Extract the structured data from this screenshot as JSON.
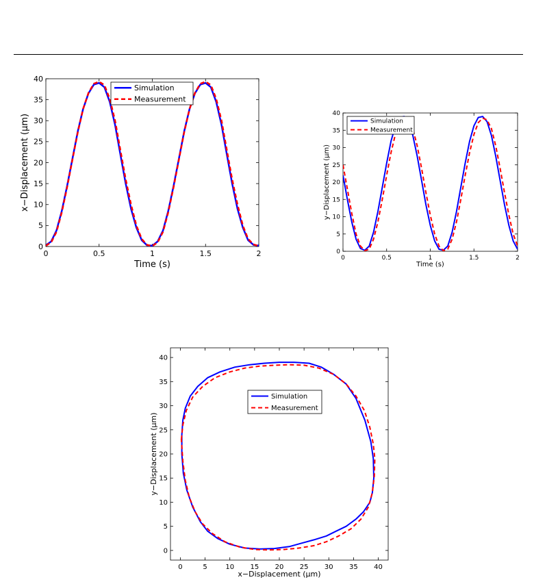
{
  "chart_data": [
    {
      "type": "line",
      "title": "",
      "xlabel": "Time (s)",
      "ylabel": "x−Displacement (μm)",
      "xlim": [
        0,
        2
      ],
      "ylim": [
        0,
        40
      ],
      "xticks": [
        0,
        0.5,
        1,
        1.5,
        2
      ],
      "xtick_labels": [
        "0",
        "0.5",
        "1",
        "1.5",
        "2"
      ],
      "yticks": [
        0,
        5,
        10,
        15,
        20,
        25,
        30,
        35,
        40
      ],
      "ytick_labels": [
        "0",
        "5",
        "10",
        "15",
        "20",
        "25",
        "30",
        "35",
        "40"
      ],
      "legend_position": "top-center",
      "series": [
        {
          "name": "Simulation",
          "color": "#0000ff",
          "style": "solid",
          "x": [
            0,
            0.05,
            0.1,
            0.15,
            0.2,
            0.25,
            0.3,
            0.35,
            0.4,
            0.45,
            0.5,
            0.55,
            0.6,
            0.65,
            0.7,
            0.75,
            0.8,
            0.85,
            0.9,
            0.95,
            1,
            1.05,
            1.1,
            1.15,
            1.2,
            1.25,
            1.3,
            1.35,
            1.4,
            1.45,
            1.5,
            1.55,
            1.6,
            1.65,
            1.7,
            1.75,
            1.8,
            1.85,
            1.9,
            1.95,
            2
          ],
          "y": [
            0.3,
            1.2,
            3.8,
            8.5,
            14.5,
            21,
            27.5,
            32.8,
            36.5,
            38.6,
            39,
            38,
            34.5,
            29,
            22,
            15,
            9,
            4.5,
            1.5,
            0.3,
            0.2,
            1.2,
            3.8,
            8.5,
            14.5,
            21,
            27.5,
            32.8,
            36.5,
            38.6,
            39,
            38,
            34.5,
            29,
            22,
            15,
            9,
            4.5,
            1.5,
            0.4,
            0.2
          ]
        },
        {
          "name": "Measurement",
          "color": "#ff0000",
          "style": "dashed",
          "x": [
            0,
            0.05,
            0.1,
            0.15,
            0.2,
            0.25,
            0.3,
            0.35,
            0.4,
            0.45,
            0.5,
            0.55,
            0.6,
            0.65,
            0.7,
            0.75,
            0.8,
            0.85,
            0.9,
            0.95,
            1,
            1.05,
            1.1,
            1.15,
            1.2,
            1.25,
            1.3,
            1.35,
            1.4,
            1.45,
            1.5,
            1.55,
            1.6,
            1.65,
            1.7,
            1.75,
            1.8,
            1.85,
            1.9,
            1.95,
            2
          ],
          "y": [
            0.2,
            1.0,
            3.5,
            8.2,
            14.2,
            20.8,
            27.3,
            32.8,
            36.6,
            38.8,
            39.3,
            38.5,
            35.2,
            30,
            23,
            16,
            10,
            5,
            1.8,
            0.4,
            0.1,
            1.0,
            3.5,
            8.2,
            14.2,
            20.8,
            27.3,
            32.8,
            36.6,
            38.8,
            39.3,
            38.5,
            35.2,
            30,
            23,
            16,
            10,
            5,
            1.8,
            0.5,
            0.1
          ]
        }
      ]
    },
    {
      "type": "line",
      "title": "",
      "xlabel": "Time (s)",
      "ylabel": "y−Displacement (μm)",
      "xlim": [
        0,
        2
      ],
      "ylim": [
        0,
        40
      ],
      "xticks": [
        0,
        0.5,
        1,
        1.5,
        2
      ],
      "xtick_labels": [
        "0",
        "0.5",
        "1",
        "1.5",
        "2"
      ],
      "yticks": [
        0,
        5,
        10,
        15,
        20,
        25,
        30,
        35,
        40
      ],
      "ytick_labels": [
        "0",
        "5",
        "10",
        "15",
        "20",
        "25",
        "30",
        "35",
        "40"
      ],
      "legend_position": "top-left",
      "series": [
        {
          "name": "Simulation",
          "color": "#0000ff",
          "style": "solid",
          "x": [
            0,
            0.05,
            0.1,
            0.15,
            0.2,
            0.25,
            0.3,
            0.35,
            0.4,
            0.45,
            0.5,
            0.55,
            0.6,
            0.65,
            0.7,
            0.75,
            0.8,
            0.85,
            0.9,
            0.95,
            1,
            1.05,
            1.1,
            1.15,
            1.2,
            1.25,
            1.3,
            1.35,
            1.4,
            1.45,
            1.5,
            1.55,
            1.6,
            1.65,
            1.7,
            1.75,
            1.8,
            1.85,
            1.9,
            1.95,
            2
          ],
          "y": [
            22,
            15,
            8.5,
            3.5,
            0.8,
            0.3,
            1.5,
            5.5,
            11.5,
            18.5,
            25.5,
            31.8,
            36.3,
            38.7,
            39,
            37.5,
            33.5,
            27.5,
            20.5,
            13.5,
            7.5,
            3,
            0.6,
            0.3,
            1.5,
            5.5,
            11.5,
            18.5,
            25.5,
            31.8,
            36.3,
            38.7,
            39,
            37.5,
            33.5,
            27.5,
            20.5,
            13.5,
            7.5,
            3,
            0.6
          ]
        },
        {
          "name": "Measurement",
          "color": "#ff0000",
          "style": "dashed",
          "x": [
            0,
            0.05,
            0.1,
            0.15,
            0.2,
            0.25,
            0.3,
            0.35,
            0.4,
            0.45,
            0.5,
            0.55,
            0.6,
            0.65,
            0.7,
            0.75,
            0.8,
            0.85,
            0.9,
            0.95,
            1,
            1.05,
            1.1,
            1.15,
            1.2,
            1.25,
            1.3,
            1.35,
            1.4,
            1.45,
            1.5,
            1.55,
            1.6,
            1.65,
            1.7,
            1.75,
            1.8,
            1.85,
            1.9,
            1.95,
            2
          ],
          "y": [
            25,
            18,
            11,
            5,
            1.5,
            0.2,
            0.6,
            3.5,
            8.5,
            15,
            22,
            28.5,
            33.8,
            37.2,
            38.5,
            38,
            35.5,
            30.5,
            24,
            17,
            10.5,
            5,
            1.5,
            0.2,
            0.6,
            3.5,
            8.5,
            15,
            22,
            28.5,
            33.8,
            37.2,
            38.5,
            38,
            35.5,
            30.5,
            24,
            17,
            10.5,
            5,
            1.5
          ]
        }
      ]
    },
    {
      "type": "line",
      "title": "",
      "xlabel": "x−Displacement (μm)",
      "ylabel": "y−Displacement (μm)",
      "xlim": [
        -2,
        42
      ],
      "ylim": [
        -2,
        42
      ],
      "xticks": [
        0,
        5,
        10,
        15,
        20,
        25,
        30,
        35,
        40
      ],
      "xtick_labels": [
        "0",
        "5",
        "10",
        "15",
        "20",
        "25",
        "30",
        "35",
        "40"
      ],
      "yticks": [
        0,
        5,
        10,
        15,
        20,
        25,
        30,
        35,
        40
      ],
      "ytick_labels": [
        "0",
        "5",
        "10",
        "15",
        "20",
        "25",
        "30",
        "35",
        "40"
      ],
      "legend_position": "center-right",
      "series": [
        {
          "name": "Simulation",
          "color": "#0000ff",
          "style": "solid",
          "closed": true,
          "x": [
            0.3,
            0.5,
            1.0,
            2.0,
            3.5,
            5.5,
            8,
            11,
            14,
            17,
            20,
            23,
            26,
            28.5,
            31,
            33.5,
            35.5,
            37.3,
            38.5,
            39.0,
            39.1,
            38.8,
            38.3,
            37,
            35.5,
            33.5,
            31.5,
            29.5,
            27,
            24.5,
            22,
            19,
            16,
            13,
            10,
            7.5,
            5.5,
            4,
            2.5,
            1.3,
            0.6,
            0.3,
            0.3
          ],
          "y": [
            24,
            27,
            29.5,
            32,
            34,
            35.8,
            37,
            38,
            38.5,
            38.8,
            39,
            39,
            38.8,
            38,
            36.5,
            34.5,
            31.5,
            27,
            22.5,
            19,
            15,
            12,
            10,
            8,
            6.5,
            5,
            4,
            3,
            2.2,
            1.5,
            0.8,
            0.4,
            0.3,
            0.5,
            1.3,
            2.5,
            4,
            6,
            9,
            12.5,
            16,
            20,
            24
          ]
        },
        {
          "name": "Measurement",
          "color": "#ff0000",
          "style": "dashed",
          "closed": true,
          "x": [
            0.2,
            0.5,
            1.2,
            2.5,
            4.5,
            7,
            10,
            13,
            16,
            19,
            22,
            25,
            28,
            31,
            33.5,
            35.5,
            37.2,
            38.3,
            39.0,
            39.3,
            39.2,
            38.8,
            38.0,
            36.5,
            34.5,
            32,
            29.5,
            27,
            24,
            21,
            18,
            15,
            12,
            9,
            6.5,
            4.5,
            3,
            1.8,
            1,
            0.5,
            0.2
          ],
          "y": [
            23,
            26,
            29,
            31.8,
            34,
            35.8,
            37,
            37.8,
            38.2,
            38.4,
            38.5,
            38.4,
            37.8,
            36.5,
            34.5,
            32,
            29,
            25.5,
            22,
            19,
            15.5,
            12,
            9,
            6.5,
            4.5,
            3,
            1.8,
            1,
            0.5,
            0.2,
            0.1,
            0.2,
            0.7,
            1.8,
            3.5,
            5.5,
            8,
            11,
            14.5,
            18.5,
            23
          ]
        }
      ]
    }
  ]
}
